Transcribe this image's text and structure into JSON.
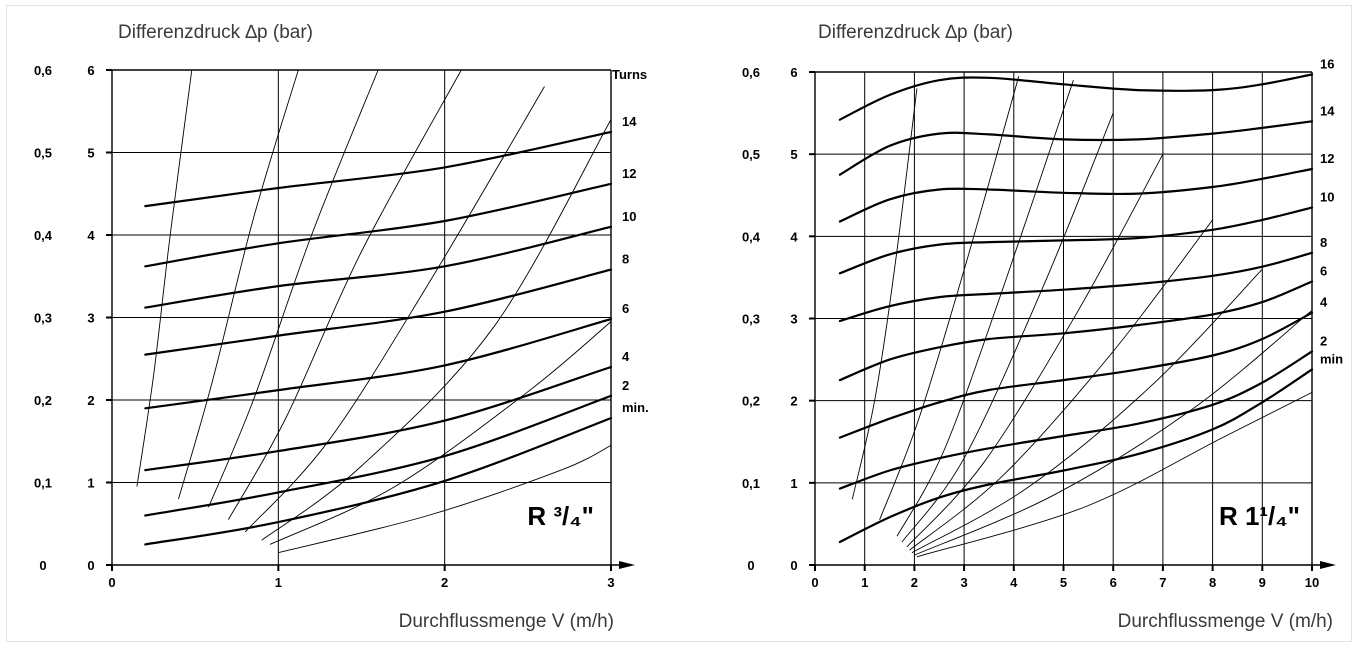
{
  "chart_data": [
    {
      "type": "line",
      "title": "Differenzdruck ∆p (bar)",
      "xlabel": "Durchflussmenge V (m/h)",
      "badge": "R ³/₄\"",
      "xlim": [
        0,
        3
      ],
      "ylim": [
        0,
        6
      ],
      "x_ticks": [
        "0",
        "1",
        "2",
        "3"
      ],
      "y_ticks_inner": [
        "0",
        "1",
        "2",
        "3",
        "4",
        "5",
        "6"
      ],
      "y_ticks_outer": [
        "0",
        "0,1",
        "0,2",
        "0,3",
        "0,4",
        "0,5",
        "0,6"
      ],
      "curve_label_header": "Turns",
      "series": [
        {
          "name": "14",
          "x": [
            0.2,
            1.0,
            2.0,
            3.0
          ],
          "y": [
            4.35,
            4.57,
            4.82,
            5.25
          ]
        },
        {
          "name": "12",
          "x": [
            0.2,
            1.0,
            2.0,
            3.0
          ],
          "y": [
            3.62,
            3.9,
            4.17,
            4.62
          ]
        },
        {
          "name": "10",
          "x": [
            0.2,
            1.0,
            2.0,
            3.0
          ],
          "y": [
            3.12,
            3.38,
            3.62,
            4.1
          ]
        },
        {
          "name": "8",
          "x": [
            0.2,
            1.0,
            2.0,
            3.0
          ],
          "y": [
            2.55,
            2.78,
            3.07,
            3.58
          ]
        },
        {
          "name": "6",
          "x": [
            0.2,
            1.0,
            2.0,
            3.0
          ],
          "y": [
            1.9,
            2.12,
            2.42,
            2.98
          ]
        },
        {
          "name": "4",
          "x": [
            0.2,
            1.0,
            2.0,
            3.0
          ],
          "y": [
            1.15,
            1.38,
            1.75,
            2.4
          ]
        },
        {
          "name": "2",
          "x": [
            0.2,
            1.0,
            2.0,
            3.0
          ],
          "y": [
            0.6,
            0.88,
            1.32,
            2.05
          ]
        },
        {
          "name": "min.",
          "x": [
            0.2,
            1.0,
            2.0,
            3.0
          ],
          "y": [
            0.25,
            0.52,
            1.02,
            1.78
          ]
        }
      ],
      "iso_lines": [
        {
          "x": [
            0.15,
            0.25,
            0.35,
            0.48
          ],
          "y": [
            0.95,
            2.3,
            4.0,
            6.0
          ]
        },
        {
          "x": [
            0.4,
            0.6,
            0.85,
            1.12
          ],
          "y": [
            0.8,
            2.2,
            4.2,
            6.0
          ]
        },
        {
          "x": [
            0.58,
            0.85,
            1.2,
            1.6
          ],
          "y": [
            0.7,
            2.0,
            4.0,
            6.0
          ]
        },
        {
          "x": [
            0.7,
            1.05,
            1.5,
            2.1
          ],
          "y": [
            0.55,
            1.8,
            3.8,
            6.0
          ]
        },
        {
          "x": [
            0.8,
            1.3,
            1.9,
            2.6
          ],
          "y": [
            0.4,
            1.5,
            3.4,
            5.8
          ]
        },
        {
          "x": [
            0.9,
            1.5,
            2.3,
            3.0
          ],
          "y": [
            0.3,
            1.2,
            2.9,
            5.4
          ]
        },
        {
          "x": [
            0.95,
            1.7,
            2.5,
            3.0
          ],
          "y": [
            0.25,
            0.95,
            2.1,
            2.95
          ]
        },
        {
          "x": [
            1.0,
            1.9,
            2.7,
            3.0
          ],
          "y": [
            0.15,
            0.6,
            1.15,
            1.45
          ]
        }
      ]
    },
    {
      "type": "line",
      "title": "Differenzdruck ∆p (bar)",
      "xlabel": "Durchflussmenge V (m/h)",
      "badge": "R 1¹/₄\"",
      "xlim": [
        0,
        10
      ],
      "ylim": [
        0,
        6
      ],
      "x_ticks": [
        "0",
        "1",
        "2",
        "3",
        "4",
        "5",
        "6",
        "7",
        "8",
        "9",
        "10"
      ],
      "y_ticks_inner": [
        "0",
        "1",
        "2",
        "3",
        "4",
        "5",
        "6"
      ],
      "y_ticks_outer": [
        "0",
        "0,1",
        "0,2",
        "0,3",
        "0,4",
        "0,5",
        "0,6"
      ],
      "curve_label_header": "",
      "series": [
        {
          "name": "16",
          "x": [
            0.5,
            1.5,
            2.5,
            3.5,
            5.0,
            6.5,
            8.0,
            9.0,
            10.0
          ],
          "y": [
            5.42,
            5.72,
            5.9,
            5.93,
            5.85,
            5.78,
            5.78,
            5.85,
            5.97
          ]
        },
        {
          "name": "14",
          "x": [
            0.5,
            1.5,
            2.5,
            3.5,
            5.0,
            6.5,
            8.0,
            9.0,
            10.0
          ],
          "y": [
            4.75,
            5.1,
            5.25,
            5.24,
            5.18,
            5.18,
            5.25,
            5.32,
            5.4
          ]
        },
        {
          "name": "12",
          "x": [
            0.5,
            1.5,
            2.5,
            3.5,
            5.0,
            6.5,
            8.0,
            9.0,
            10.0
          ],
          "y": [
            4.18,
            4.45,
            4.57,
            4.57,
            4.53,
            4.52,
            4.6,
            4.7,
            4.82
          ]
        },
        {
          "name": "10",
          "x": [
            0.5,
            1.5,
            2.5,
            3.5,
            5.0,
            6.5,
            8.0,
            9.0,
            10.0
          ],
          "y": [
            3.55,
            3.78,
            3.9,
            3.93,
            3.95,
            3.98,
            4.08,
            4.2,
            4.35
          ]
        },
        {
          "name": "8",
          "x": [
            0.5,
            1.5,
            2.5,
            3.5,
            5.0,
            6.5,
            8.0,
            9.0,
            10.0
          ],
          "y": [
            2.97,
            3.15,
            3.26,
            3.3,
            3.35,
            3.42,
            3.52,
            3.63,
            3.8
          ]
        },
        {
          "name": "6",
          "x": [
            0.5,
            1.5,
            2.5,
            3.5,
            5.0,
            6.5,
            8.0,
            9.0,
            10.0
          ],
          "y": [
            2.25,
            2.5,
            2.65,
            2.75,
            2.82,
            2.92,
            3.05,
            3.2,
            3.45
          ]
        },
        {
          "name": "4",
          "x": [
            0.5,
            1.5,
            2.5,
            3.5,
            5.0,
            6.5,
            8.0,
            9.0,
            10.0
          ],
          "y": [
            1.55,
            1.78,
            1.98,
            2.13,
            2.25,
            2.38,
            2.55,
            2.75,
            3.07
          ]
        },
        {
          "name": "2",
          "x": [
            0.5,
            1.5,
            2.5,
            3.5,
            5.0,
            6.5,
            8.0,
            9.0,
            10.0
          ],
          "y": [
            0.93,
            1.15,
            1.3,
            1.42,
            1.57,
            1.72,
            1.95,
            2.22,
            2.6
          ]
        },
        {
          "name": "min",
          "x": [
            0.5,
            1.5,
            2.5,
            3.5,
            5.0,
            6.5,
            8.0,
            9.0,
            10.0
          ],
          "y": [
            0.28,
            0.58,
            0.82,
            0.98,
            1.15,
            1.35,
            1.65,
            1.98,
            2.38
          ]
        }
      ],
      "iso_lines": [
        {
          "x": [
            0.75,
            1.2,
            1.6,
            2.05
          ],
          "y": [
            0.8,
            2.0,
            3.6,
            5.8
          ]
        },
        {
          "x": [
            1.3,
            2.1,
            3.1,
            4.1
          ],
          "y": [
            0.55,
            1.8,
            3.8,
            5.95
          ]
        },
        {
          "x": [
            1.65,
            2.6,
            3.8,
            5.2
          ],
          "y": [
            0.35,
            1.4,
            3.4,
            5.9
          ]
        },
        {
          "x": [
            1.75,
            3.0,
            4.6,
            6.0
          ],
          "y": [
            0.28,
            1.3,
            3.4,
            5.5
          ]
        },
        {
          "x": [
            1.85,
            3.4,
            5.3,
            7.0
          ],
          "y": [
            0.22,
            1.25,
            3.1,
            5.0
          ]
        },
        {
          "x": [
            1.9,
            3.8,
            6.0,
            8.0
          ],
          "y": [
            0.18,
            1.1,
            2.6,
            4.2
          ]
        },
        {
          "x": [
            1.95,
            4.3,
            6.8,
            9.0
          ],
          "y": [
            0.15,
            0.95,
            2.2,
            3.6
          ]
        },
        {
          "x": [
            2.0,
            4.8,
            7.6,
            10.0
          ],
          "y": [
            0.12,
            0.85,
            1.9,
            3.1
          ]
        },
        {
          "x": [
            2.05,
            5.4,
            8.2,
            10.0
          ],
          "y": [
            0.1,
            0.7,
            1.55,
            2.1
          ]
        }
      ]
    }
  ]
}
